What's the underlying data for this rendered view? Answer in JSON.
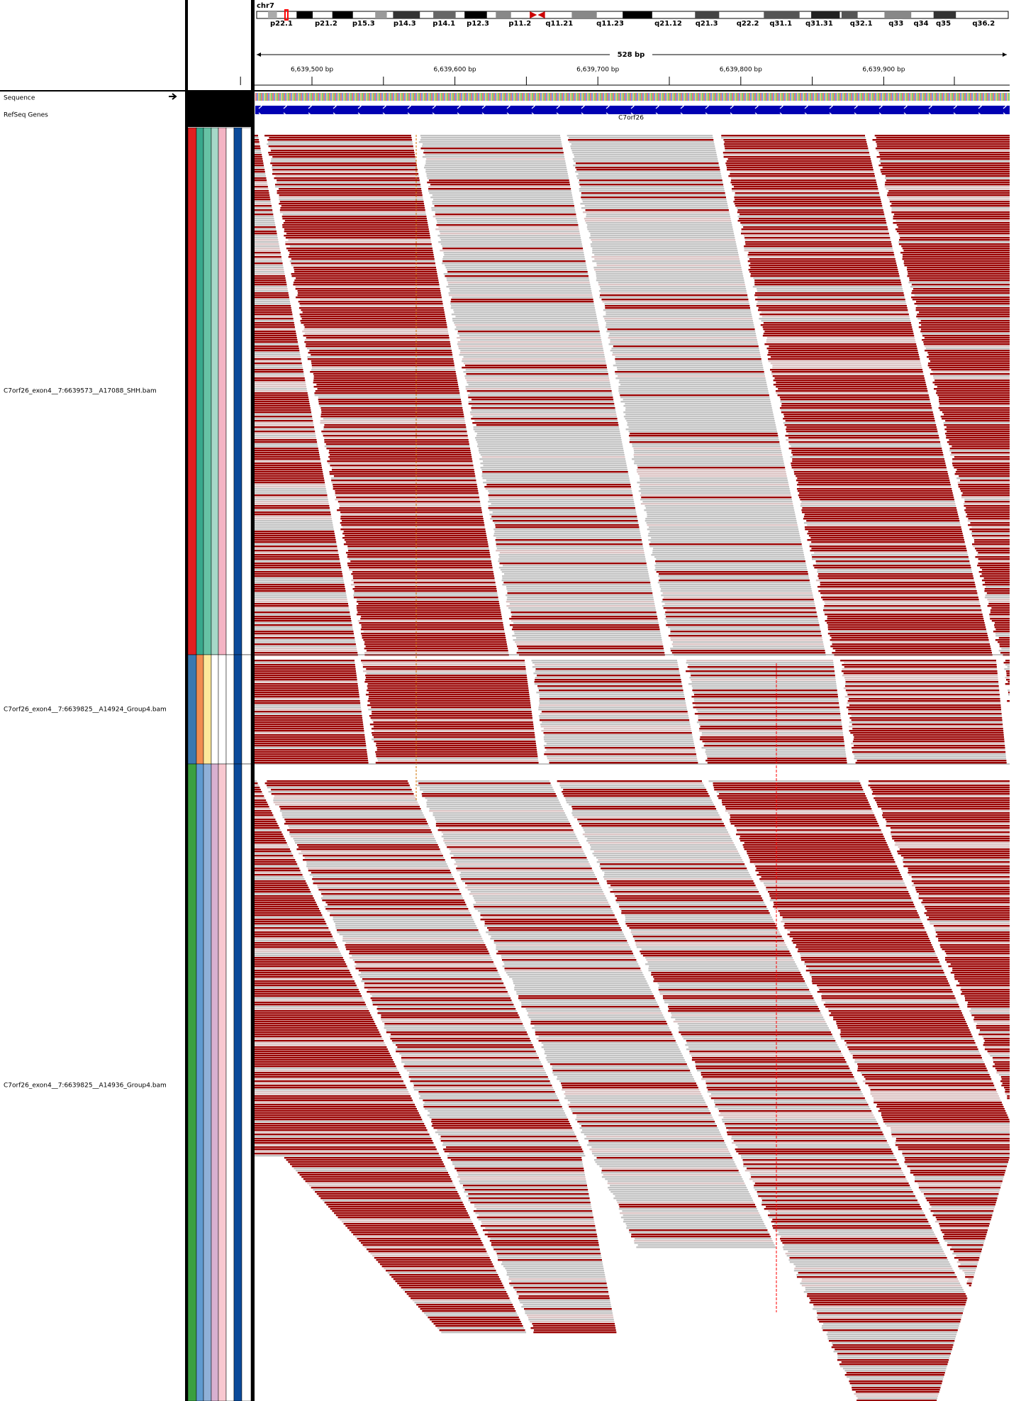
{
  "header": {
    "chromosome": "chr7",
    "bands": [
      "p22.1",
      "p21.2",
      "p15.3",
      "p14.3",
      "p14.1",
      "p12.3",
      "p11.2",
      "q11.21",
      "q11.23",
      "q21.12",
      "q21.3",
      "q22.2",
      "q31.1",
      "q31.31",
      "q32.1",
      "q33",
      "q34",
      "q35",
      "q36.2"
    ],
    "span": "528 bp",
    "ruler": [
      "6,639,500 bp",
      "6,639,600 bp",
      "6,639,700 bp",
      "6,639,800 bp",
      "6,639,900 bp"
    ]
  },
  "tracks": {
    "sequence": "Sequence",
    "genes": "RefSeq Genes",
    "gene": "C7orf26"
  },
  "alignments": [
    "C7orf26_exon4__7:6639573__A17088_SHH.bam",
    "C7orf26_exon4__7:6639825__A14924_Group4.bam",
    "C7orf26_exon4__7:6639825__A14936_Group4.bam"
  ]
}
